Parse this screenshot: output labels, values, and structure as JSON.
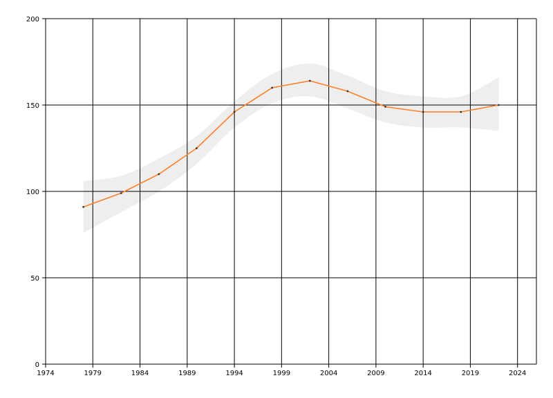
{
  "chart_data": {
    "type": "line",
    "title": "",
    "xlabel": "",
    "ylabel": "",
    "xlim": [
      1974,
      2026
    ],
    "ylim": [
      0,
      200
    ],
    "x_ticks": [
      1974,
      1979,
      1984,
      1989,
      1994,
      1999,
      2004,
      2009,
      2014,
      2019,
      2024
    ],
    "y_ticks": [
      0,
      50,
      100,
      150,
      200
    ],
    "grid": true,
    "series": [
      {
        "x": [
          1978,
          1982,
          1986,
          1990,
          1994,
          1998,
          2002,
          2006,
          2010,
          2014,
          2018,
          2022
        ],
        "values": [
          91,
          99,
          110,
          125,
          146,
          160,
          164,
          158,
          149,
          146,
          146,
          150
        ],
        "color": "#ff7f2a",
        "band_upper": [
          106,
          109,
          119,
          132,
          152,
          168,
          174,
          167,
          158,
          155,
          155,
          166
        ],
        "band_lower": [
          76,
          88,
          100,
          116,
          137,
          151,
          155,
          148,
          140,
          137,
          137,
          135
        ],
        "band_color": "#eeeeee"
      }
    ]
  }
}
